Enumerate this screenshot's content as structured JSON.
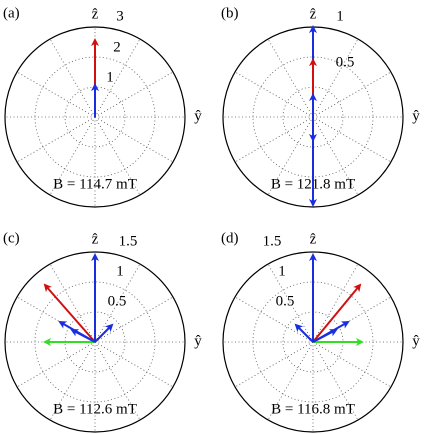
{
  "panels": [
    {
      "label": "(a)",
      "field": "B = 114.7 mT",
      "z_axis": "ẑ",
      "y_axis": "ŷ",
      "rings": [
        "3",
        "2",
        "1"
      ]
    },
    {
      "label": "(b)",
      "field": "B = 121.8 mT",
      "z_axis": "ẑ",
      "y_axis": "ŷ",
      "rings": [
        "1",
        "0.5"
      ]
    },
    {
      "label": "(c)",
      "field": "B = 112.6 mT",
      "z_axis": "ẑ",
      "y_axis": "ŷ",
      "rings": [
        "1.5",
        "1",
        "0.5"
      ]
    },
    {
      "label": "(d)",
      "field": "B = 116.8 mT",
      "z_axis": "ẑ",
      "y_axis": "ŷ",
      "rings": [
        "1.5",
        "1",
        "0.5"
      ]
    }
  ]
}
